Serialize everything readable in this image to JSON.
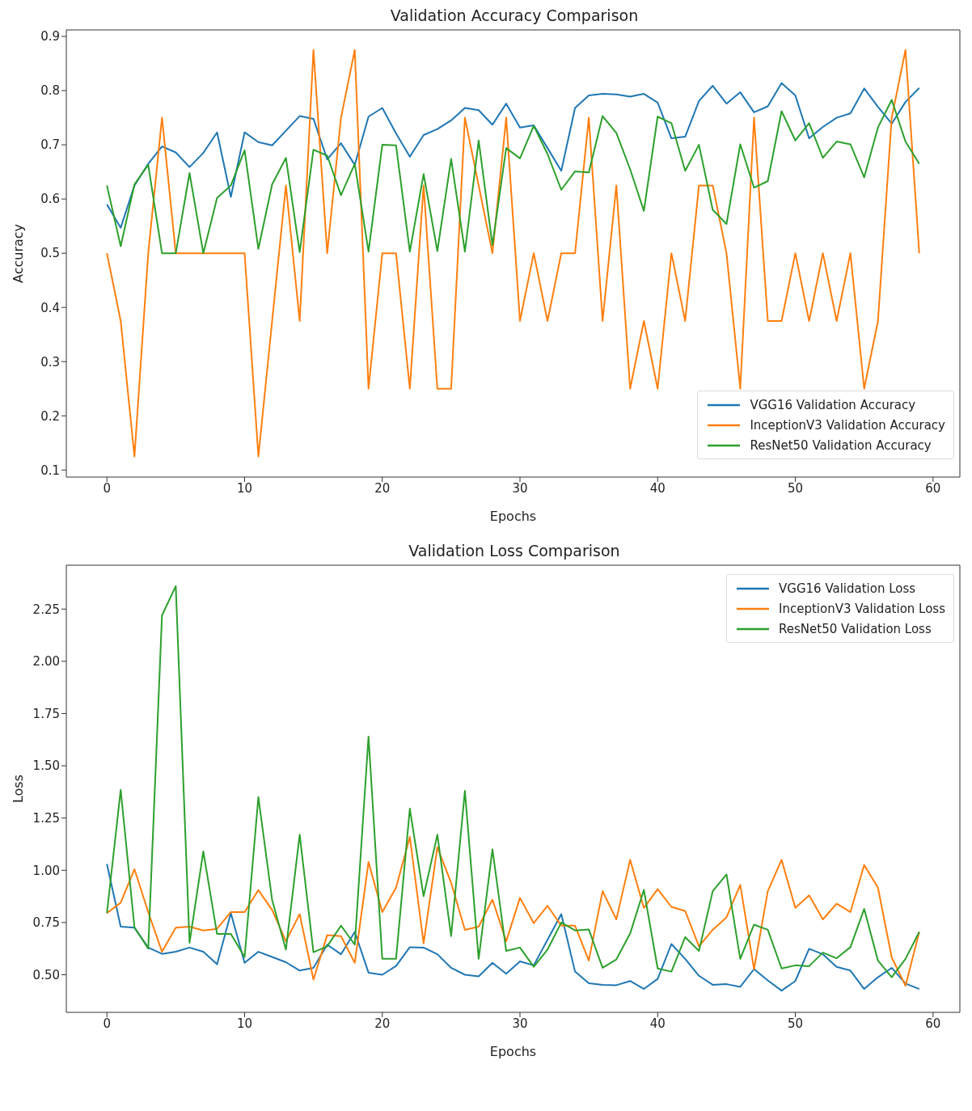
{
  "chart_data": [
    {
      "type": "line",
      "title": "Validation Accuracy Comparison",
      "xlabel": "Epochs",
      "ylabel": "Accuracy",
      "x": [
        0,
        1,
        2,
        3,
        4,
        5,
        6,
        7,
        8,
        9,
        10,
        11,
        12,
        13,
        14,
        15,
        16,
        17,
        18,
        19,
        20,
        21,
        22,
        23,
        24,
        25,
        26,
        27,
        28,
        29,
        30,
        31,
        32,
        33,
        34,
        35,
        36,
        37,
        38,
        39,
        40,
        41,
        42,
        43,
        44,
        45,
        46,
        47,
        48,
        49,
        50,
        51,
        52,
        53,
        54,
        55,
        56,
        57,
        58,
        59
      ],
      "series": [
        {
          "name": "VGG16 Validation Accuracy",
          "color": "#1f77b4",
          "values": [
            0.59,
            0.547,
            0.625,
            0.665,
            0.697,
            0.686,
            0.659,
            0.685,
            0.723,
            0.604,
            0.723,
            0.705,
            0.699,
            0.726,
            0.753,
            0.748,
            0.673,
            0.703,
            0.663,
            0.752,
            0.768,
            0.721,
            0.678,
            0.718,
            0.729,
            0.745,
            0.768,
            0.764,
            0.737,
            0.776,
            0.732,
            0.736,
            0.694,
            0.652,
            0.768,
            0.791,
            0.794,
            0.793,
            0.789,
            0.794,
            0.778,
            0.712,
            0.715,
            0.781,
            0.809,
            0.776,
            0.797,
            0.76,
            0.771,
            0.814,
            0.791,
            0.712,
            0.733,
            0.75,
            0.758,
            0.804,
            0.77,
            0.739,
            0.779,
            0.805
          ]
        },
        {
          "name": "InceptionV3 Validation Accuracy",
          "color": "#ff7f0e",
          "values": [
            0.5,
            0.375,
            0.125,
            0.5,
            0.75,
            0.5,
            0.5,
            0.5,
            0.5,
            0.5,
            0.5,
            0.125,
            0.375,
            0.625,
            0.375,
            0.875,
            0.5,
            0.75,
            0.875,
            0.25,
            0.5,
            0.5,
            0.25,
            0.625,
            0.25,
            0.25,
            0.75,
            0.625,
            0.5,
            0.75,
            0.375,
            0.5,
            0.375,
            0.5,
            0.5,
            0.75,
            0.375,
            0.625,
            0.25,
            0.375,
            0.25,
            0.5,
            0.375,
            0.625,
            0.625,
            0.5,
            0.25,
            0.75,
            0.375,
            0.375,
            0.5,
            0.375,
            0.5,
            0.375,
            0.5,
            0.25,
            0.375,
            0.75,
            0.875,
            0.5
          ]
        },
        {
          "name": "ResNet50 Validation Accuracy",
          "color": "#2ca02c",
          "values": [
            0.625,
            0.513,
            0.627,
            0.663,
            0.5,
            0.5,
            0.648,
            0.5,
            0.602,
            0.625,
            0.69,
            0.508,
            0.627,
            0.676,
            0.502,
            0.691,
            0.68,
            0.607,
            0.665,
            0.503,
            0.7,
            0.699,
            0.503,
            0.646,
            0.504,
            0.674,
            0.503,
            0.708,
            0.515,
            0.694,
            0.675,
            0.735,
            0.683,
            0.617,
            0.651,
            0.649,
            0.753,
            0.722,
            0.655,
            0.578,
            0.752,
            0.74,
            0.652,
            0.7,
            0.58,
            0.554,
            0.701,
            0.621,
            0.633,
            0.762,
            0.708,
            0.74,
            0.676,
            0.706,
            0.701,
            0.64,
            0.732,
            0.783,
            0.706,
            0.665
          ]
        }
      ],
      "xlim": [
        -2.95,
        61.95
      ],
      "xticks": [
        0,
        10,
        20,
        30,
        40,
        50,
        60
      ],
      "ylim": [
        0.087,
        0.912
      ],
      "yticks": [
        0.1,
        0.2,
        0.3,
        0.4,
        0.5,
        0.6,
        0.7,
        0.8,
        0.9
      ],
      "legend": "bottom right",
      "grid": false,
      "marker": "none",
      "line_style": "solid"
    },
    {
      "type": "line",
      "title": "Validation Loss Comparison",
      "xlabel": "Epochs",
      "ylabel": "Loss",
      "x": [
        0,
        1,
        2,
        3,
        4,
        5,
        6,
        7,
        8,
        9,
        10,
        11,
        12,
        13,
        14,
        15,
        16,
        17,
        18,
        19,
        20,
        21,
        22,
        23,
        24,
        25,
        26,
        27,
        28,
        29,
        30,
        31,
        32,
        33,
        34,
        35,
        36,
        37,
        38,
        39,
        40,
        41,
        42,
        43,
        44,
        45,
        46,
        47,
        48,
        49,
        50,
        51,
        52,
        53,
        54,
        55,
        56,
        57,
        58,
        59
      ],
      "series": [
        {
          "name": "VGG16 Validation Loss",
          "color": "#1f77b4",
          "values": [
            1.03,
            0.73,
            0.725,
            0.63,
            0.6,
            0.61,
            0.63,
            0.61,
            0.55,
            0.795,
            0.557,
            0.61,
            0.585,
            0.56,
            0.52,
            0.533,
            0.644,
            0.598,
            0.705,
            0.51,
            0.5,
            0.542,
            0.632,
            0.63,
            0.598,
            0.533,
            0.5,
            0.492,
            0.557,
            0.505,
            0.564,
            0.545,
            0.667,
            0.79,
            0.515,
            0.459,
            0.452,
            0.45,
            0.47,
            0.432,
            0.48,
            0.647,
            0.576,
            0.495,
            0.452,
            0.455,
            0.442,
            0.527,
            0.473,
            0.424,
            0.47,
            0.624,
            0.598,
            0.538,
            0.52,
            0.432,
            0.488,
            0.533,
            0.458,
            0.432
          ]
        },
        {
          "name": "InceptionV3 Validation Loss",
          "color": "#ff7f0e",
          "values": [
            0.795,
            0.845,
            1.005,
            0.8,
            0.61,
            0.725,
            0.73,
            0.712,
            0.72,
            0.8,
            0.8,
            0.905,
            0.81,
            0.66,
            0.79,
            0.477,
            0.69,
            0.685,
            0.557,
            1.04,
            0.8,
            0.917,
            1.16,
            0.65,
            1.11,
            0.94,
            0.715,
            0.73,
            0.86,
            0.66,
            0.868,
            0.747,
            0.83,
            0.735,
            0.735,
            0.568,
            0.9,
            0.765,
            1.05,
            0.82,
            0.91,
            0.825,
            0.805,
            0.636,
            0.715,
            0.775,
            0.93,
            0.527,
            0.9,
            1.05,
            0.82,
            0.88,
            0.765,
            0.84,
            0.8,
            1.025,
            0.917,
            0.583,
            0.447,
            0.705
          ]
        },
        {
          "name": "ResNet50 Validation Loss",
          "color": "#2ca02c",
          "values": [
            0.795,
            1.385,
            0.727,
            0.625,
            2.22,
            2.36,
            0.653,
            1.09,
            0.695,
            0.695,
            0.585,
            1.35,
            0.857,
            0.62,
            1.17,
            0.608,
            0.636,
            0.735,
            0.644,
            1.64,
            0.576,
            0.576,
            1.295,
            0.876,
            1.17,
            0.685,
            1.38,
            0.576,
            1.1,
            0.614,
            0.63,
            0.538,
            0.62,
            0.75,
            0.712,
            0.717,
            0.533,
            0.573,
            0.697,
            0.906,
            0.53,
            0.515,
            0.68,
            0.614,
            0.9,
            0.98,
            0.576,
            0.74,
            0.715,
            0.53,
            0.545,
            0.541,
            0.606,
            0.579,
            0.632,
            0.815,
            0.568,
            0.488,
            0.576,
            0.705
          ]
        }
      ],
      "xlim": [
        -2.95,
        61.95
      ],
      "xticks": [
        0,
        10,
        20,
        30,
        40,
        50,
        60
      ],
      "ylim": [
        0.32,
        2.46
      ],
      "yticks": [
        {
          "value": 0.5,
          "label": "0.50"
        },
        0.75,
        {
          "value": 1,
          "label": "1.00"
        },
        1.25,
        {
          "value": 1.5,
          "label": "1.50"
        },
        1.75,
        {
          "value": 2,
          "label": "2.00"
        },
        2.25
      ],
      "legend": "top right",
      "grid": false,
      "marker": "none",
      "line_style": "solid"
    }
  ]
}
